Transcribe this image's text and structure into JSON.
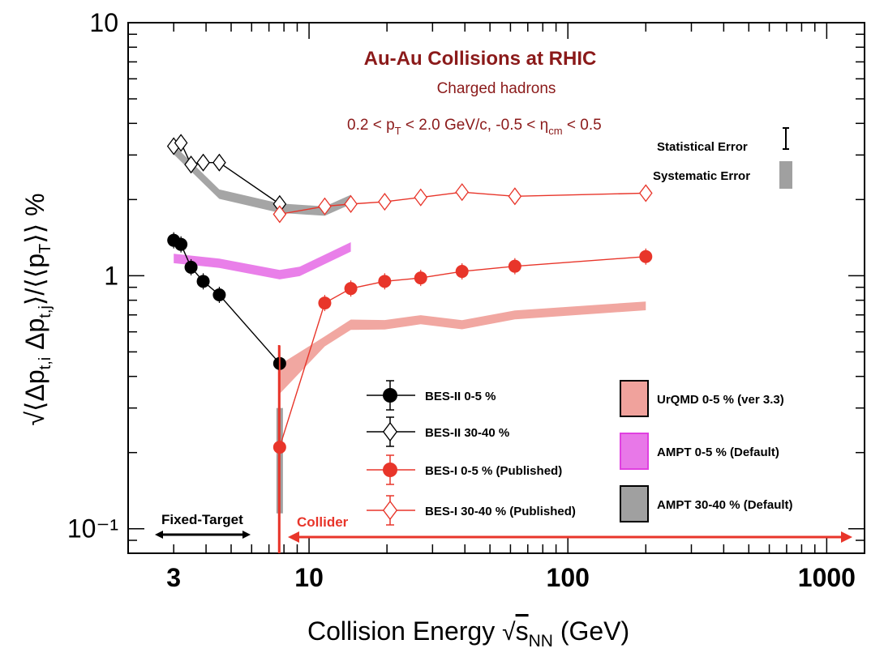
{
  "chart_data": {
    "type": "scatter",
    "title": "Au-Au Collisions at RHIC",
    "subtitle": "Charged hadrons",
    "cuts": "0.2 < p_T < 2.0 GeV/c, -0.5 < η_cm < 0.5",
    "xlabel": "Collision Energy √s_NN (GeV)",
    "ylabel": "√⟨Δp_t,i Δp_t,j⟩/⟨⟨p_T⟩⟩ %",
    "x_scale": "log",
    "y_scale": "log",
    "xlim": [
      2.0,
      1400
    ],
    "ylim": [
      0.08,
      10
    ],
    "x_ticks": [
      {
        "value": 3,
        "label": "3"
      },
      {
        "value": 10,
        "label": "10"
      },
      {
        "value": 100,
        "label": "100"
      },
      {
        "value": 1000,
        "label": "1000"
      }
    ],
    "y_ticks": [
      {
        "value": 0.1,
        "label": "10⁻¹"
      },
      {
        "value": 1,
        "label": "1"
      },
      {
        "value": 10,
        "label": "10"
      }
    ],
    "error_legend": {
      "statistical": "Statistical Error",
      "systematic": "Systematic Error"
    },
    "regions": {
      "fixed_target": "Fixed-Target",
      "collider": "Collider"
    },
    "series": [
      {
        "name": "BES-II 0-5 %",
        "style": "filled-circle",
        "color": "#000000",
        "x": [
          3.0,
          3.2,
          3.5,
          3.9,
          4.5,
          7.7
        ],
        "y": [
          1.38,
          1.33,
          1.08,
          0.95,
          0.84,
          0.45
        ]
      },
      {
        "name": "BES-II 30-40 %",
        "style": "open-diamond",
        "color": "#000000",
        "x": [
          3.0,
          3.2,
          3.5,
          3.9,
          4.5,
          7.7
        ],
        "y": [
          3.25,
          3.35,
          2.75,
          2.8,
          2.8,
          1.92
        ]
      },
      {
        "name": "BES-I 0-5 % (Published)",
        "style": "filled-circle",
        "color": "#e8352a",
        "x": [
          7.7,
          11.5,
          14.5,
          19.6,
          27,
          39,
          62.4,
          200
        ],
        "y": [
          0.21,
          0.78,
          0.89,
          0.95,
          0.98,
          1.04,
          1.09,
          1.19
        ]
      },
      {
        "name": "BES-I 30-40 % (Published)",
        "style": "open-diamond",
        "color": "#e8352a",
        "x": [
          7.7,
          11.5,
          14.5,
          19.6,
          27,
          39,
          62.4,
          200
        ],
        "y": [
          1.75,
          1.88,
          1.92,
          1.96,
          2.04,
          2.14,
          2.06,
          2.12
        ]
      }
    ],
    "bands": [
      {
        "name": "UrQMD 0-5 % (ver 3.3)",
        "color": "#f0a29c",
        "x": [
          7.7,
          11.5,
          14.5,
          19.6,
          27,
          39,
          62.4,
          200
        ],
        "y": [
          0.39,
          0.55,
          0.64,
          0.64,
          0.67,
          0.64,
          0.7,
          0.76
        ]
      },
      {
        "name": "AMPT 0-5 % (Default)",
        "color": "#e878e8",
        "x": [
          3.0,
          4.5,
          7.7,
          9.2,
          14.5
        ],
        "y": [
          1.17,
          1.12,
          1.01,
          1.04,
          1.3
        ]
      },
      {
        "name": "AMPT 30-40 % (Default)",
        "color": "#a0a0a0",
        "x": [
          3.0,
          4.5,
          7.7,
          11.5,
          14.5
        ],
        "y": [
          3.15,
          2.1,
          1.85,
          1.8,
          2.0
        ]
      }
    ],
    "legend_placement": "bottom-center and bottom-right",
    "grid": false
  }
}
